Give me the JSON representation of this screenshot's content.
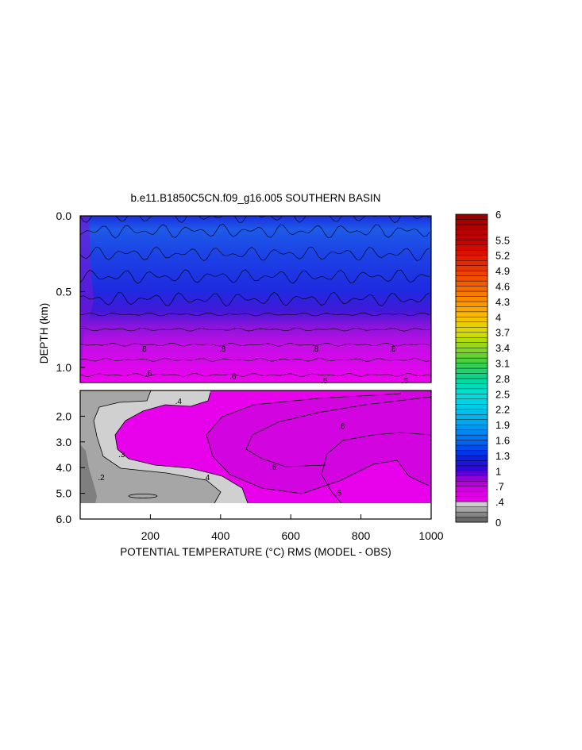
{
  "chart_data": {
    "type": "heatmap",
    "title": "b.e11.B1850C5CN.f09_g16.005 SOUTHERN BASIN",
    "xlabel": "POTENTIAL TEMPERATURE (°C) RMS (MODEL - OBS)",
    "ylabel": "DEPTH (km)",
    "xlim": [
      0,
      1000
    ],
    "upper_panel_ylim": [
      0.0,
      1.1
    ],
    "lower_panel_ylim": [
      1.3,
      5.4
    ],
    "xticks": [
      200,
      400,
      600,
      800,
      1000
    ],
    "xtick_labels": [
      "200",
      "400",
      "600",
      "800",
      "1000"
    ],
    "upper_yticks": [
      0.0,
      0.5,
      1.0
    ],
    "upper_ytick_labels": [
      "0.0",
      "0.5",
      "1.0"
    ],
    "lower_yticks": [
      2.0,
      3.0,
      4.0,
      5.0,
      6.0
    ],
    "lower_ytick_labels": [
      "2.0",
      "3.0",
      "4.0",
      "5.0",
      "6.0"
    ],
    "colorbar_levels": [
      0,
      0.1,
      0.2,
      0.3,
      0.4,
      0.5,
      0.6,
      0.7,
      0.8,
      0.9,
      1.0,
      1.1,
      1.2,
      1.3,
      1.4,
      1.5,
      1.6,
      1.7,
      1.8,
      1.9,
      2.0,
      2.1,
      2.2,
      2.3,
      2.4,
      2.5,
      2.6,
      2.7,
      2.8,
      2.9,
      3.0,
      3.1,
      3.2,
      3.3,
      3.4,
      3.5,
      3.6,
      3.7,
      3.8,
      3.9,
      4.0,
      4.1,
      4.2,
      4.3,
      4.4,
      4.5,
      4.6,
      4.7,
      4.8,
      4.9,
      5.0,
      5.1,
      5.2,
      5.3,
      5.4,
      5.5,
      5.6,
      5.7,
      5.8,
      5.9,
      6.0
    ],
    "colorbar_labels": [
      "6",
      "5.5",
      "5.2",
      "4.9",
      "4.6",
      "4.3",
      "4",
      "3.7",
      "3.4",
      "3.1",
      "2.8",
      "2.5",
      "2.2",
      "1.9",
      "1.6",
      "1.3",
      "1",
      ".7",
      ".4",
      "0"
    ],
    "upper_profile": [
      {
        "depth": 0.0,
        "value": 1.5
      },
      {
        "depth": 0.1,
        "value": 1.4
      },
      {
        "depth": 0.25,
        "value": 1.3
      },
      {
        "depth": 0.4,
        "value": 1.2
      },
      {
        "depth": 0.55,
        "value": 1.1
      },
      {
        "depth": 0.65,
        "value": 1.0
      },
      {
        "depth": 0.75,
        "value": 0.9
      },
      {
        "depth": 0.85,
        "value": 0.8
      },
      {
        "depth": 0.95,
        "value": 0.7
      },
      {
        "depth": 1.05,
        "value": 0.6
      }
    ],
    "contour_labels": [
      {
        "text": ".8",
        "x": 180,
        "depth": 0.88
      },
      {
        "text": ".8",
        "x": 405,
        "depth": 0.88
      },
      {
        "text": ".8",
        "x": 670,
        "depth": 0.88
      },
      {
        "text": ".8",
        "x": 890,
        "depth": 0.88
      },
      {
        "text": ".6",
        "x": 195,
        "depth": 1.04
      },
      {
        "text": ".6",
        "x": 435,
        "depth": 1.06
      },
      {
        "text": ".6",
        "x": 695,
        "depth": 1.09
      },
      {
        "text": ".6",
        "x": 925,
        "depth": 1.09
      },
      {
        "text": ".4",
        "x": 280,
        "depth": 1.43
      },
      {
        "text": ".6",
        "x": 745,
        "depth": 2.4
      },
      {
        "text": ".6",
        "x": 550,
        "depth": 4.0
      },
      {
        "text": ".4",
        "x": 360,
        "depth": 4.4
      },
      {
        "text": ".6",
        "x": 735,
        "depth": 5.0
      },
      {
        "text": ".2",
        "x": 60,
        "depth": 4.4
      },
      {
        "text": ".3",
        "x": 118,
        "depth": 3.5
      }
    ]
  }
}
